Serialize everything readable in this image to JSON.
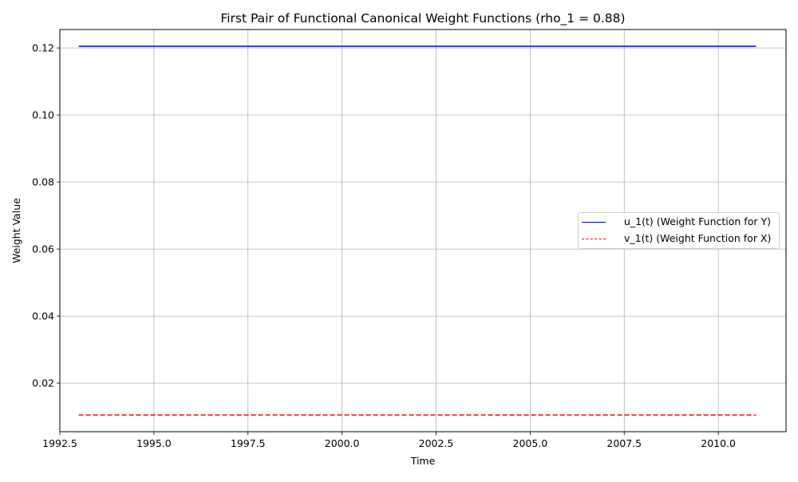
{
  "chart_data": {
    "type": "line",
    "title": "First Pair of Functional Canonical Weight Functions (rho_1 = 0.88)",
    "xlabel": "Time",
    "ylabel": "Weight Value",
    "xlim": [
      1992.5,
      2011.8
    ],
    "ylim": [
      0.0055,
      0.1255
    ],
    "x_ticks": [
      1992.5,
      1995.0,
      1997.5,
      2000.0,
      2002.5,
      2005.0,
      2007.5,
      2010.0
    ],
    "x_tick_labels": [
      "1992.5",
      "1995.0",
      "1997.5",
      "2000.0",
      "2002.5",
      "2005.0",
      "2007.5",
      "2010.0"
    ],
    "y_ticks": [
      0.02,
      0.04,
      0.06,
      0.08,
      0.1,
      0.12
    ],
    "y_tick_labels": [
      "0.02",
      "0.04",
      "0.06",
      "0.08",
      "0.10",
      "0.12"
    ],
    "grid": true,
    "legend_position": "center-right",
    "series": [
      {
        "name": "u_1(t) (Weight Function for Y)",
        "color": "#0000cc",
        "style": "solid",
        "x": [
          1993.0,
          2011.0
        ],
        "y": [
          0.1205,
          0.1205
        ]
      },
      {
        "name": "v_1(t) (Weight Function for X)",
        "color": "#ff0000",
        "style": "dashed",
        "x": [
          1993.0,
          2011.0
        ],
        "y": [
          0.0105,
          0.0105
        ]
      }
    ]
  }
}
